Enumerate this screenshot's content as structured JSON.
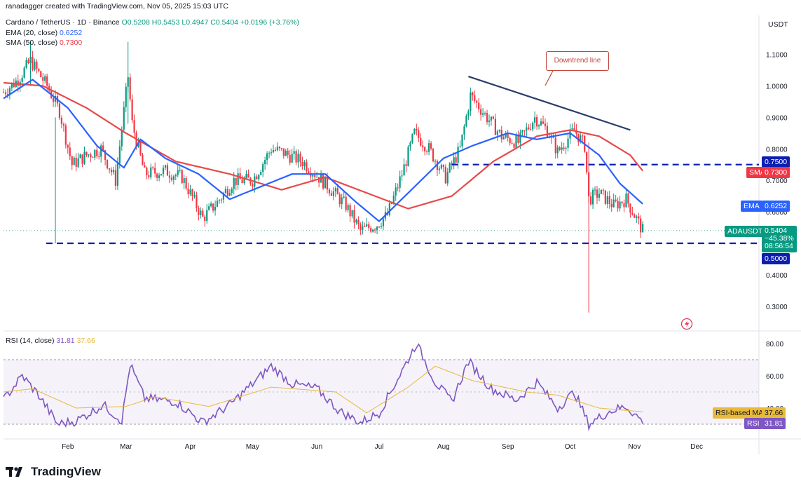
{
  "credit": "ranadagger created with TradingView.com, Nov 05, 2025 15:03 UTC",
  "header": {
    "symbol": "Cardano / TetherUS · 1D · Binance",
    "open": "O0.5208",
    "high": "H0.5453",
    "low": "L0.4947",
    "close": "C0.5404",
    "change": "+0.0196 (+3.76%)",
    "ema_label": "EMA (20, close)",
    "ema_value": "0.6252",
    "sma_label": "SMA (50, close)",
    "sma_value": "0.7300"
  },
  "rsi_header": {
    "label": "RSI (14, close)",
    "rsi_value": "31.81",
    "ma_value": "37.66"
  },
  "currency": "USDT",
  "annotation": "Downtrend line",
  "price_labels": {
    "upper_line": "0.7500",
    "sma": "SMA:MA",
    "sma_value": "0.7300",
    "ema": "EMA",
    "ema_value": "0.6252",
    "symbol": "ADAUSDT",
    "last": "0.5404",
    "change": "−45.38%",
    "countdown": "08:56:54",
    "lower_line": "0.5000"
  },
  "rsi_labels": {
    "ma_name": "RSI-based MA",
    "ma_value": "37.66",
    "rsi_name": "RSI",
    "rsi_value": "31.81"
  },
  "brand": "TradingView",
  "colors": {
    "up": "#089981",
    "down": "#f23645",
    "ema": "#2962ff",
    "sma": "#e64a4a",
    "rsi": "#7e57c2",
    "rsi_ma": "#e8b93a",
    "level": "#0c1fb0"
  },
  "chart_data": {
    "type": "candlestick",
    "x_ticks": [
      "Feb",
      "Mar",
      "Apr",
      "May",
      "Jun",
      "Jul",
      "Aug",
      "Sep",
      "Oct",
      "Nov",
      "Dec"
    ],
    "y_ticks": [
      "1.1000",
      "1.0000",
      "0.9000",
      "0.8000",
      "0.7000",
      "0.6000",
      "0.5000",
      "0.4000",
      "0.3000"
    ],
    "rsi_ticks": [
      "80.00",
      "60.00",
      "40.00"
    ],
    "horizontal_levels": [
      0.75,
      0.5
    ],
    "trendline": {
      "from": [
        "2025-08-13",
        1.03
      ],
      "to": [
        "2025-10-30",
        0.86
      ]
    },
    "price_path": [
      [
        "2025-01-01",
        0.98
      ],
      [
        "2025-01-08",
        1.02
      ],
      [
        "2025-01-14",
        1.08
      ],
      [
        "2025-01-22",
        1.0
      ],
      [
        "2025-01-28",
        0.92
      ],
      [
        "2025-02-03",
        0.75
      ],
      [
        "2025-02-10",
        0.78
      ],
      [
        "2025-02-17",
        0.8
      ],
      [
        "2025-02-24",
        0.7
      ],
      [
        "2025-03-02",
        1.03
      ],
      [
        "2025-03-04",
        0.88
      ],
      [
        "2025-03-10",
        0.72
      ],
      [
        "2025-03-20",
        0.73
      ],
      [
        "2025-03-28",
        0.71
      ],
      [
        "2025-04-07",
        0.58
      ],
      [
        "2025-04-14",
        0.63
      ],
      [
        "2025-04-22",
        0.7
      ],
      [
        "2025-05-01",
        0.7
      ],
      [
        "2025-05-10",
        0.8
      ],
      [
        "2025-05-15",
        0.79
      ],
      [
        "2025-05-25",
        0.76
      ],
      [
        "2025-06-05",
        0.69
      ],
      [
        "2025-06-15",
        0.62
      ],
      [
        "2025-06-22",
        0.54
      ],
      [
        "2025-06-30",
        0.56
      ],
      [
        "2025-07-05",
        0.59
      ],
      [
        "2025-07-12",
        0.72
      ],
      [
        "2025-07-18",
        0.85
      ],
      [
        "2025-07-25",
        0.8
      ],
      [
        "2025-08-02",
        0.71
      ],
      [
        "2025-08-09",
        0.8
      ],
      [
        "2025-08-14",
        0.97
      ],
      [
        "2025-08-22",
        0.9
      ],
      [
        "2025-08-29",
        0.84
      ],
      [
        "2025-09-06",
        0.82
      ],
      [
        "2025-09-14",
        0.9
      ],
      [
        "2025-09-20",
        0.86
      ],
      [
        "2025-09-25",
        0.79
      ],
      [
        "2025-10-03",
        0.86
      ],
      [
        "2025-10-08",
        0.81
      ],
      [
        "2025-10-10",
        0.64
      ],
      [
        "2025-10-15",
        0.66
      ],
      [
        "2025-10-22",
        0.62
      ],
      [
        "2025-10-28",
        0.64
      ],
      [
        "2025-11-05",
        0.54
      ]
    ],
    "ema20_path": [
      [
        "2025-01-01",
        0.96
      ],
      [
        "2025-01-15",
        1.02
      ],
      [
        "2025-02-01",
        0.93
      ],
      [
        "2025-02-15",
        0.81
      ],
      [
        "2025-02-28",
        0.74
      ],
      [
        "2025-03-08",
        0.83
      ],
      [
        "2025-03-20",
        0.77
      ],
      [
        "2025-04-05",
        0.72
      ],
      [
        "2025-04-20",
        0.64
      ],
      [
        "2025-05-05",
        0.68
      ],
      [
        "2025-05-20",
        0.72
      ],
      [
        "2025-06-05",
        0.72
      ],
      [
        "2025-06-20",
        0.63
      ],
      [
        "2025-07-01",
        0.57
      ],
      [
        "2025-07-15",
        0.66
      ],
      [
        "2025-08-01",
        0.77
      ],
      [
        "2025-08-15",
        0.81
      ],
      [
        "2025-09-01",
        0.85
      ],
      [
        "2025-09-15",
        0.83
      ],
      [
        "2025-10-01",
        0.85
      ],
      [
        "2025-10-15",
        0.78
      ],
      [
        "2025-10-25",
        0.69
      ],
      [
        "2025-11-05",
        0.6252
      ]
    ],
    "sma50_path": [
      [
        "2025-01-01",
        1.01
      ],
      [
        "2025-01-20",
        1.0
      ],
      [
        "2025-02-10",
        0.93
      ],
      [
        "2025-03-01",
        0.85
      ],
      [
        "2025-03-25",
        0.76
      ],
      [
        "2025-04-20",
        0.72
      ],
      [
        "2025-05-15",
        0.67
      ],
      [
        "2025-06-05",
        0.71
      ],
      [
        "2025-06-25",
        0.66
      ],
      [
        "2025-07-15",
        0.61
      ],
      [
        "2025-08-05",
        0.65
      ],
      [
        "2025-08-25",
        0.76
      ],
      [
        "2025-09-15",
        0.84
      ],
      [
        "2025-10-01",
        0.86
      ],
      [
        "2025-10-15",
        0.84
      ],
      [
        "2025-10-30",
        0.78
      ],
      [
        "2025-11-05",
        0.73
      ]
    ],
    "rsi_path": [
      [
        "2025-01-01",
        45
      ],
      [
        "2025-01-10",
        60
      ],
      [
        "2025-01-18",
        48
      ],
      [
        "2025-01-27",
        30
      ],
      [
        "2025-02-05",
        32
      ],
      [
        "2025-02-18",
        42
      ],
      [
        "2025-02-27",
        32
      ],
      [
        "2025-03-03",
        67
      ],
      [
        "2025-03-10",
        46
      ],
      [
        "2025-03-25",
        44
      ],
      [
        "2025-04-07",
        31
      ],
      [
        "2025-04-20",
        42
      ],
      [
        "2025-05-01",
        55
      ],
      [
        "2025-05-10",
        66
      ],
      [
        "2025-05-20",
        55
      ],
      [
        "2025-06-01",
        52
      ],
      [
        "2025-06-12",
        38
      ],
      [
        "2025-06-22",
        31
      ],
      [
        "2025-07-01",
        37
      ],
      [
        "2025-07-12",
        63
      ],
      [
        "2025-07-19",
        80
      ],
      [
        "2025-07-28",
        56
      ],
      [
        "2025-08-05",
        44
      ],
      [
        "2025-08-13",
        69
      ],
      [
        "2025-08-24",
        52
      ],
      [
        "2025-09-05",
        45
      ],
      [
        "2025-09-15",
        56
      ],
      [
        "2025-09-25",
        40
      ],
      [
        "2025-10-03",
        50
      ],
      [
        "2025-10-10",
        30
      ],
      [
        "2025-10-20",
        38
      ],
      [
        "2025-10-28",
        41
      ],
      [
        "2025-11-05",
        31.81
      ]
    ],
    "rsi_ma_path": [
      [
        "2025-01-01",
        50
      ],
      [
        "2025-01-15",
        52
      ],
      [
        "2025-02-05",
        40
      ],
      [
        "2025-03-01",
        41
      ],
      [
        "2025-03-15",
        47
      ],
      [
        "2025-04-10",
        41
      ],
      [
        "2025-05-10",
        53
      ],
      [
        "2025-06-10",
        50
      ],
      [
        "2025-06-25",
        37
      ],
      [
        "2025-07-15",
        53
      ],
      [
        "2025-07-28",
        66
      ],
      [
        "2025-08-15",
        57
      ],
      [
        "2025-09-10",
        50
      ],
      [
        "2025-09-25",
        48
      ],
      [
        "2025-10-15",
        40
      ],
      [
        "2025-11-05",
        37.66
      ]
    ],
    "rsi_band": [
      30,
      70
    ]
  }
}
